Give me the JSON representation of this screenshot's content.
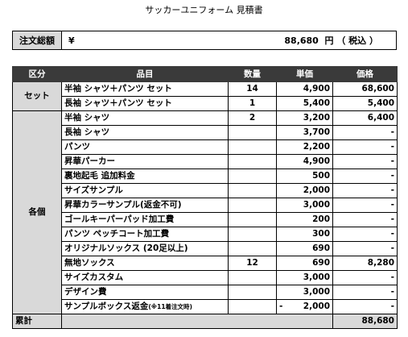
{
  "title": "サッカーユニフォーム 見積書",
  "total_box": {
    "label": "注文総額",
    "currency": "¥",
    "amount": "88,680  円 （ 税込 ）"
  },
  "headers": {
    "category": "区分",
    "item": "品目",
    "qty": "数量",
    "unit": "単価",
    "price": "価格"
  },
  "categories": {
    "set": "セット",
    "each": "各個",
    "total": "累計"
  },
  "set_rows": [
    {
      "item": "半袖 シャツ＋パンツ セット",
      "qty": "14",
      "unit": "4,900",
      "price": "68,600"
    },
    {
      "item": "長袖 シャツ＋パンツ セット",
      "qty": "1",
      "unit": "5,400",
      "price": "5,400"
    }
  ],
  "each_rows": [
    {
      "item": "半袖 シャツ",
      "qty": "2",
      "unit": "3,200",
      "price": "6,400"
    },
    {
      "item": "長袖 シャツ",
      "qty": "",
      "unit": "3,700",
      "price": "-"
    },
    {
      "item": "パンツ",
      "qty": "",
      "unit": "2,200",
      "price": "-"
    },
    {
      "item": "昇華パーカー",
      "qty": "",
      "unit": "4,900",
      "price": "-"
    },
    {
      "item": "裏地起毛 追加料金",
      "qty": "",
      "unit": "500",
      "price": "-"
    },
    {
      "item": "サイズサンプル",
      "qty": "",
      "unit": "2,000",
      "price": "-"
    },
    {
      "item": "昇華カラーサンプル(返金不可)",
      "qty": "",
      "unit": "3,000",
      "price": "-"
    },
    {
      "item": "ゴールキーパーパッド加工費",
      "qty": "",
      "unit": "200",
      "price": "-"
    },
    {
      "item": "パンツ ペッチコート加工費",
      "qty": "",
      "unit": "300",
      "price": "-"
    },
    {
      "item": "オリジナルソックス (20足以上)",
      "qty": "",
      "unit": "690",
      "price": "-"
    },
    {
      "item": "無地ソックス",
      "qty": "12",
      "unit": "690",
      "price": "8,280"
    },
    {
      "item": "サイズカスタム",
      "qty": "",
      "unit": "3,000",
      "price": "-"
    },
    {
      "item": "デザイン費",
      "qty": "",
      "unit": "3,000",
      "price": "-"
    }
  ],
  "refund_row": {
    "item": "サンプルボックス返金",
    "note": "(※11着注文時)",
    "sign": "-",
    "unit": "2,000",
    "price": "-"
  },
  "grand_total": "88,680"
}
